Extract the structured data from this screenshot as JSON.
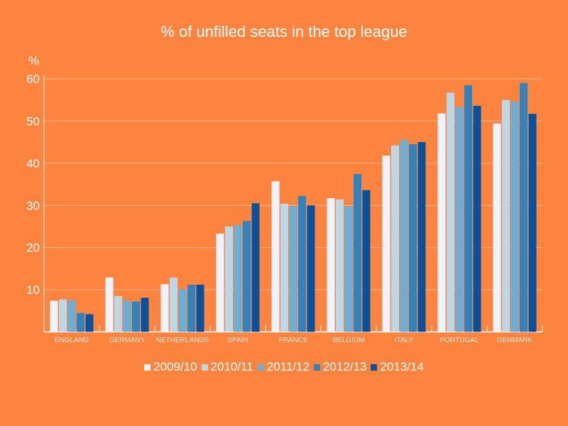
{
  "chart_data": {
    "type": "bar",
    "title": "% of unfilled seats in the top league",
    "ylabel": "%",
    "xlabel": "",
    "ylim": [
      0,
      60
    ],
    "yticks": [
      10,
      20,
      30,
      40,
      50,
      60
    ],
    "grid": true,
    "legend_position": "bottom",
    "categories": [
      "ENGLAND",
      "GERMANY",
      "NETHERLANDS",
      "SPAIN",
      "FRANCE",
      "BELGIUM",
      "ITALY",
      "PORTUGAL",
      "DENMARK"
    ],
    "series": [
      {
        "name": "2009/10",
        "color": "#eef3fc",
        "values": [
          7.4,
          12.9,
          11.3,
          23.3,
          35.7,
          31.7,
          41.8,
          51.8,
          49.4
        ]
      },
      {
        "name": "2010/11",
        "color": "#bdd7e7",
        "values": [
          7.7,
          8.5,
          12.9,
          25.0,
          30.4,
          31.4,
          44.2,
          56.7,
          55.0
        ]
      },
      {
        "name": "2011/12",
        "color": "#6baed6",
        "values": [
          7.5,
          7.4,
          10.1,
          25.3,
          29.8,
          29.8,
          45.5,
          53.3,
          54.6
        ]
      },
      {
        "name": "2012/13",
        "color": "#3182bd",
        "values": [
          4.5,
          7.2,
          11.2,
          26.3,
          32.2,
          37.4,
          44.5,
          58.5,
          59.0
        ]
      },
      {
        "name": "2013/14",
        "color": "#08519c",
        "values": [
          4.2,
          8.1,
          11.2,
          30.5,
          30.0,
          33.6,
          45.0,
          53.6,
          51.7
        ]
      }
    ]
  }
}
